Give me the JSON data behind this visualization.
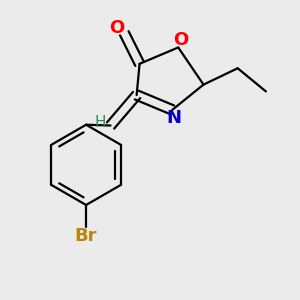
{
  "background_color": "#ebebeb",
  "bond_color": "#000000",
  "O_color": "#ff0000",
  "N_color": "#0000cd",
  "Br_color": "#b8860b",
  "H_color": "#2e8b57",
  "line_width": 1.6,
  "font_size": 13,
  "fig_width": 3.0,
  "fig_height": 3.0,
  "dpi": 100,
  "xlim": [
    0.0,
    1.0
  ],
  "ylim": [
    0.0,
    1.0
  ]
}
